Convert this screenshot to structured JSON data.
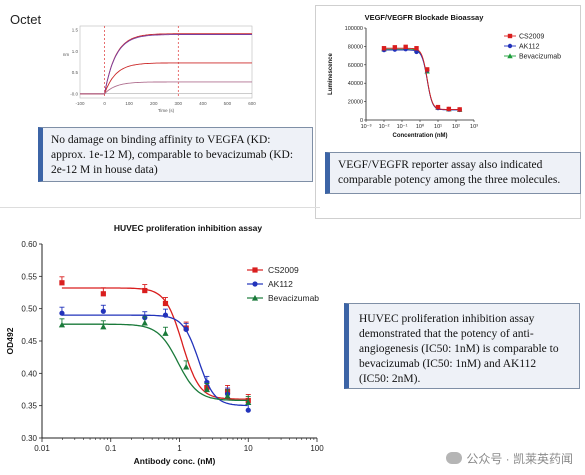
{
  "octet": {
    "title": "Octet",
    "callout": "No damage on binding affinity to VEGFA (KD: approx. 1e-12 M), comparable to bevacizumab (KD: 2e-12 M in house data)"
  },
  "reporter": {
    "callout": "VEGF/VEGFR reporter assay also indicated comparable potency among the three molecules."
  },
  "huvec": {
    "callout": "HUVEC proliferation inhibition assay demonstrated that the potency of anti-angiogenesis (IC50: 1nM) is comparable to bevacizumab (IC50: 1nM) and AK112 (IC50: 2nM)."
  },
  "watermark": "公众号 · 凯莱英药闻",
  "chart_data": [
    {
      "id": "octet",
      "type": "line",
      "title": "",
      "xlabel": "Time (s)",
      "ylabel": "nm",
      "xlim": [
        -100,
        600
      ],
      "ylim": [
        -0.1,
        1.6
      ],
      "x_ticks": [
        "-100",
        "0",
        "100",
        "200",
        "300",
        "400",
        "500",
        "600"
      ],
      "y_ticks": [
        "-0.0",
        "0.5",
        "1.0",
        "1.5"
      ],
      "phase_markers_x": [
        0,
        300
      ],
      "series": [
        {
          "color": "#cc2a2a",
          "plateau": 1.42,
          "dissociation_end": 1.42
        },
        {
          "color": "#7a3fa0",
          "plateau": 1.4,
          "dissociation_end": 1.4
        },
        {
          "color": "#cc2a2a",
          "plateau": 0.73,
          "dissociation_end": 0.73
        },
        {
          "color": "#b07090",
          "plateau": 0.28,
          "dissociation_end": 0.28
        }
      ]
    },
    {
      "id": "reporter",
      "type": "scatter",
      "title": "VEGF/VEGFR Blockade Bioassay",
      "xlabel": "Concentration (nM)",
      "ylabel": "Luminescence",
      "xscale": "log",
      "xlim": [
        0.001,
        1000
      ],
      "ylim": [
        0,
        100000
      ],
      "x_ticks": [
        "10⁻³",
        "10⁻²",
        "10⁻¹",
        "10⁰",
        "10¹",
        "10²",
        "10³"
      ],
      "y_ticks": [
        "0",
        "20000",
        "40000",
        "60000",
        "80000",
        "100000"
      ],
      "legend_position": "top-right",
      "x": [
        0.01,
        0.04,
        0.16,
        0.64,
        2.5,
        10,
        40,
        160
      ],
      "series": [
        {
          "name": "CS2009",
          "color": "#d91e1e",
          "marker": "square",
          "values": [
            78000,
            79000,
            79500,
            78000,
            55000,
            14000,
            12000,
            11500
          ]
        },
        {
          "name": "AK112",
          "color": "#2233bb",
          "marker": "circle",
          "values": [
            76000,
            76500,
            77000,
            74000,
            54000,
            13000,
            11500,
            11000
          ]
        },
        {
          "name": "Bevacizumab",
          "color": "#1e9e3c",
          "marker": "triangle",
          "values": [
            77000,
            78000,
            78500,
            76000,
            53000,
            13500,
            11800,
            11200
          ]
        }
      ]
    },
    {
      "id": "huvec",
      "type": "scatter",
      "title": "HUVEC proliferation inhibition assay",
      "xlabel": "Antibody conc. (nM)",
      "ylabel": "OD492",
      "xscale": "log",
      "xlim": [
        0.01,
        100
      ],
      "ylim": [
        0.3,
        0.6
      ],
      "x_ticks": [
        "0.01",
        "0.1",
        "1",
        "10",
        "100"
      ],
      "y_ticks": [
        "0.30",
        "0.35",
        "0.40",
        "0.45",
        "0.50",
        "0.55",
        "0.60"
      ],
      "legend_position": "top-right",
      "x": [
        0.0195,
        0.078,
        0.3125,
        0.625,
        1.25,
        2.5,
        5,
        10
      ],
      "series": [
        {
          "name": "CS2009",
          "color": "#d91e1e",
          "marker": "square",
          "values": [
            0.54,
            0.523,
            0.528,
            0.508,
            0.47,
            0.378,
            0.372,
            0.358
          ],
          "fit": {
            "top": 0.532,
            "bottom": 0.36,
            "ic50": 1.1,
            "hill": 3.5
          }
        },
        {
          "name": "AK112",
          "color": "#2233bb",
          "marker": "circle",
          "values": [
            0.493,
            0.496,
            0.486,
            0.49,
            0.468,
            0.386,
            0.368,
            0.343
          ],
          "fit": {
            "top": 0.49,
            "bottom": 0.35,
            "ic50": 1.9,
            "hill": 3.8
          }
        },
        {
          "name": "Bevacizumab",
          "color": "#1a7a3a",
          "marker": "triangle",
          "values": [
            0.475,
            0.472,
            0.478,
            0.462,
            0.41,
            0.375,
            0.365,
            0.355
          ],
          "fit": {
            "top": 0.476,
            "bottom": 0.358,
            "ic50": 0.95,
            "hill": 3.0
          }
        }
      ]
    }
  ]
}
